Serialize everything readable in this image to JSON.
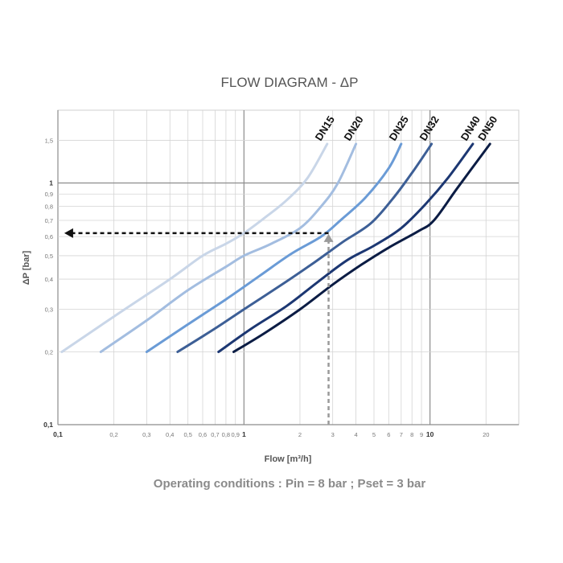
{
  "chart_data": {
    "type": "line",
    "title": "FLOW DIAGRAM - ΔP",
    "xlabel": "Flow [m³/h]",
    "ylabel": "ΔP [bar]",
    "x_scale": "log",
    "y_scale": "log",
    "xlim": [
      0.1,
      30
    ],
    "ylim": [
      0.1,
      2
    ],
    "grid": true,
    "x_ticks": [
      {
        "value": 0.1,
        "label": "0,1",
        "major": true
      },
      {
        "value": 0.2,
        "label": "0,2",
        "major": false
      },
      {
        "value": 0.3,
        "label": "0,3",
        "major": false
      },
      {
        "value": 0.4,
        "label": "0,4",
        "major": false
      },
      {
        "value": 0.5,
        "label": "0,5",
        "major": false
      },
      {
        "value": 0.6,
        "label": "0,6",
        "major": false
      },
      {
        "value": 0.7,
        "label": "0,7",
        "major": false
      },
      {
        "value": 0.8,
        "label": "0,8",
        "major": false
      },
      {
        "value": 0.9,
        "label": "0,9",
        "major": false
      },
      {
        "value": 1,
        "label": "1",
        "major": true
      },
      {
        "value": 2,
        "label": "2",
        "major": false
      },
      {
        "value": 3,
        "label": "3",
        "major": false
      },
      {
        "value": 4,
        "label": "4",
        "major": false
      },
      {
        "value": 5,
        "label": "5",
        "major": false
      },
      {
        "value": 6,
        "label": "6",
        "major": false
      },
      {
        "value": 7,
        "label": "7",
        "major": false
      },
      {
        "value": 8,
        "label": "8",
        "major": false
      },
      {
        "value": 9,
        "label": "9",
        "major": false
      },
      {
        "value": 10,
        "label": "10",
        "major": true
      },
      {
        "value": 20,
        "label": "20",
        "major": false
      }
    ],
    "y_ticks": [
      {
        "value": 0.1,
        "label": "0,1",
        "major": true
      },
      {
        "value": 0.2,
        "label": "0,2",
        "major": false
      },
      {
        "value": 0.3,
        "label": "0,3",
        "major": false
      },
      {
        "value": 0.4,
        "label": "0,4",
        "major": false
      },
      {
        "value": 0.5,
        "label": "0,5",
        "major": false
      },
      {
        "value": 0.6,
        "label": "0,6",
        "major": false
      },
      {
        "value": 0.7,
        "label": "0,7",
        "major": false
      },
      {
        "value": 0.8,
        "label": "0,8",
        "major": false
      },
      {
        "value": 0.9,
        "label": "0,9",
        "major": false
      },
      {
        "value": 1,
        "label": "1",
        "major": true
      },
      {
        "value": 1.5,
        "label": "1,5",
        "major": false
      }
    ],
    "series": [
      {
        "name": "DN15",
        "color": "#c9d6e8",
        "x": [
          0.105,
          0.2,
          0.4,
          0.6,
          0.8,
          1.0,
          1.3,
          1.7,
          2.2,
          2.8
        ],
        "y": [
          0.2,
          0.28,
          0.4,
          0.5,
          0.56,
          0.62,
          0.72,
          0.85,
          1.05,
          1.45
        ]
      },
      {
        "name": "DN20",
        "color": "#a3bde0",
        "x": [
          0.17,
          0.3,
          0.5,
          0.8,
          1.0,
          1.4,
          2.0,
          2.6,
          3.2,
          4.0
        ],
        "y": [
          0.2,
          0.27,
          0.36,
          0.45,
          0.5,
          0.56,
          0.65,
          0.8,
          1.0,
          1.45
        ]
      },
      {
        "name": "DN25",
        "color": "#6a9bd6",
        "x": [
          0.3,
          0.5,
          0.8,
          1.2,
          1.8,
          2.6,
          3.3,
          4.5,
          6.0,
          7.0
        ],
        "y": [
          0.2,
          0.26,
          0.33,
          0.41,
          0.51,
          0.6,
          0.7,
          0.87,
          1.15,
          1.45
        ]
      },
      {
        "name": "DN32",
        "color": "#3d5f96",
        "x": [
          0.44,
          0.7,
          1.0,
          1.6,
          2.4,
          3.4,
          4.8,
          6.3,
          8.0,
          10.2
        ],
        "y": [
          0.2,
          0.25,
          0.3,
          0.38,
          0.47,
          0.57,
          0.68,
          0.86,
          1.1,
          1.45
        ]
      },
      {
        "name": "DN40",
        "color": "#1c3772",
        "x": [
          0.73,
          1.1,
          1.7,
          2.5,
          3.6,
          5.0,
          7.0,
          9.5,
          12.5,
          17.0
        ],
        "y": [
          0.2,
          0.25,
          0.31,
          0.39,
          0.48,
          0.55,
          0.65,
          0.82,
          1.05,
          1.45
        ]
      },
      {
        "name": "DN50",
        "color": "#0b1c44",
        "x": [
          0.88,
          1.3,
          2.0,
          3.0,
          4.3,
          6.0,
          8.6,
          10.5,
          14.0,
          21.0
        ],
        "y": [
          0.2,
          0.24,
          0.3,
          0.38,
          0.46,
          0.54,
          0.63,
          0.7,
          0.95,
          1.45
        ]
      }
    ],
    "annotation": {
      "x": 2.85,
      "y": 0.62,
      "x_end": 0.105
    },
    "caption": "Operating conditions : Pin = 8 bar ; Pset = 3 bar"
  }
}
